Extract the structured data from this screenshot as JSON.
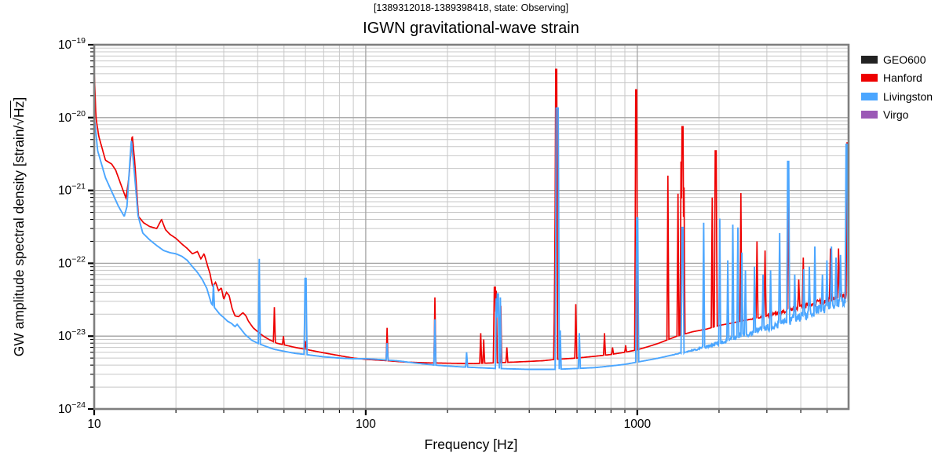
{
  "header": {
    "suptitle": "[1389312018-1389398418, state: Observing]",
    "title": "IGWN gravitational-wave strain"
  },
  "axes": {
    "xlabel": "Frequency [Hz]",
    "ylabel_prefix": "GW amplitude spectral density [strain/",
    "ylabel_sqrt_symbol": "√",
    "ylabel_sqrt_arg": "Hz",
    "ylabel_suffix": "]",
    "x_ticks": [
      {
        "value": 10,
        "label": "10"
      },
      {
        "value": 100,
        "label": "100"
      },
      {
        "value": 1000,
        "label": "1000"
      }
    ],
    "y_ticks": [
      {
        "value": 1e-19,
        "base": "10",
        "exp": "−19"
      },
      {
        "value": 1e-20,
        "base": "10",
        "exp": "−20"
      },
      {
        "value": 1e-21,
        "base": "10",
        "exp": "−21"
      },
      {
        "value": 1e-22,
        "base": "10",
        "exp": "−22"
      },
      {
        "value": 1e-23,
        "base": "10",
        "exp": "−23"
      },
      {
        "value": 1e-24,
        "base": "10",
        "exp": "−24"
      }
    ]
  },
  "chart_data": {
    "type": "line",
    "x_scale": "log",
    "y_scale": "log",
    "xlim": [
      10,
      6000
    ],
    "ylim": [
      1e-24,
      1e-19
    ],
    "grid": "both",
    "legend_position": "right-outside",
    "title": "IGWN gravitational-wave strain",
    "xlabel": "Frequency [Hz]",
    "ylabel": "GW amplitude spectral density [strain/√Hz]",
    "series": [
      {
        "name": "GEO600",
        "color": "#222222",
        "baseline": [],
        "spikes": [],
        "fuzz": null
      },
      {
        "name": "Hanford",
        "color": "#ee0000",
        "baseline": [
          [
            10,
            4.5e-20
          ],
          [
            10.15,
            1e-20
          ],
          [
            10.4,
            5.5e-21
          ],
          [
            11,
            2.6e-21
          ],
          [
            11.6,
            2.3e-21
          ],
          [
            12.0,
            1.9e-21
          ],
          [
            12.6,
            1.15e-21
          ],
          [
            13.1,
            7.8e-22
          ],
          [
            13.45,
            1.6e-21
          ],
          [
            13.8,
            5.9e-21
          ],
          [
            14.1,
            2.5e-21
          ],
          [
            14.55,
            4.4e-22
          ],
          [
            15.2,
            3.6e-22
          ],
          [
            16.0,
            3.2e-22
          ],
          [
            17.0,
            3e-22
          ],
          [
            17.7,
            4e-22
          ],
          [
            18.3,
            2.9e-22
          ],
          [
            19.0,
            2.5e-22
          ],
          [
            20,
            2.2e-22
          ],
          [
            21,
            1.85e-22
          ],
          [
            22,
            1.6e-22
          ],
          [
            23,
            1.35e-22
          ],
          [
            24,
            1.45e-22
          ],
          [
            24.7,
            1.15e-22
          ],
          [
            25.4,
            1.35e-22
          ],
          [
            26.1,
            9.5e-23
          ],
          [
            26.7,
            7.2e-23
          ],
          [
            27.3,
            4.8e-23
          ],
          [
            28,
            5.5e-23
          ],
          [
            28.7,
            4.2e-23
          ],
          [
            29.4,
            4.6e-23
          ],
          [
            30,
            3.2e-23
          ],
          [
            30.7,
            4e-23
          ],
          [
            31.4,
            3.6e-23
          ],
          [
            32.2,
            2.4e-23
          ],
          [
            33,
            1.9e-23
          ],
          [
            34,
            1.85e-23
          ],
          [
            35.3,
            2.1e-23
          ],
          [
            36.2,
            1.9e-23
          ],
          [
            37,
            1.6e-23
          ],
          [
            38.5,
            1.3e-23
          ],
          [
            40,
            1.15e-23
          ],
          [
            42,
            1e-23
          ],
          [
            44,
            9e-24
          ],
          [
            47,
            8e-24
          ],
          [
            50,
            7.6e-24
          ],
          [
            55,
            7e-24
          ],
          [
            60,
            6.6e-24
          ],
          [
            70,
            5.9e-24
          ],
          [
            80,
            5.4e-24
          ],
          [
            90,
            5e-24
          ],
          [
            100,
            4.8e-24
          ],
          [
            120,
            4.6e-24
          ],
          [
            140,
            4.4e-24
          ],
          [
            170,
            4.3e-24
          ],
          [
            200,
            4.25e-24
          ],
          [
            250,
            4.2e-24
          ],
          [
            300,
            4.3e-24
          ],
          [
            350,
            4.4e-24
          ],
          [
            400,
            4.5e-24
          ],
          [
            450,
            4.6e-24
          ],
          [
            500,
            4.8e-24
          ],
          [
            600,
            5e-24
          ],
          [
            700,
            5.3e-24
          ],
          [
            800,
            5.6e-24
          ],
          [
            900,
            6e-24
          ],
          [
            1000,
            6.5e-24
          ],
          [
            1100,
            7.2e-24
          ],
          [
            1200,
            8e-24
          ],
          [
            1400,
            1e-23
          ],
          [
            1600,
            1.15e-23
          ],
          [
            1800,
            1.25e-23
          ],
          [
            2000,
            1.4e-23
          ],
          [
            2300,
            1.55e-23
          ],
          [
            2600,
            1.7e-23
          ],
          [
            3000,
            1.9e-23
          ],
          [
            3500,
            2.2e-23
          ],
          [
            4000,
            2.5e-23
          ],
          [
            4500,
            2.8e-23
          ],
          [
            5000,
            3.1e-23
          ],
          [
            5500,
            3.4e-23
          ],
          [
            6000,
            3.7e-23
          ]
        ],
        "spikes": [
          [
            46,
            2.5e-23
          ],
          [
            49.8,
            1e-23
          ],
          [
            60,
            8.5e-24
          ],
          [
            120,
            1.3e-23
          ],
          [
            180,
            3.4e-23
          ],
          [
            265,
            1.1e-23
          ],
          [
            272,
            9e-24
          ],
          [
            299,
            4.7e-23,
            1
          ],
          [
            302,
            4.2e-23
          ],
          [
            315,
            2.6e-23
          ],
          [
            331,
            7e-24
          ],
          [
            497,
            7e-23
          ],
          [
            502,
            4.6e-20,
            1
          ],
          [
            594,
            2.75e-23
          ],
          [
            757,
            1.1e-23
          ],
          [
            810,
            7e-24
          ],
          [
            905,
            7.5e-24
          ],
          [
            990,
            2.4e-20,
            1
          ],
          [
            1297,
            1.6e-21
          ],
          [
            1410,
            9e-22
          ],
          [
            1447,
            2.5e-21
          ],
          [
            1465,
            7.5e-21,
            1
          ],
          [
            1485,
            1.1e-21
          ],
          [
            1890,
            8e-22
          ],
          [
            1945,
            3.5e-21,
            1
          ],
          [
            2410,
            9.2e-22
          ],
          [
            2760,
            2e-22
          ],
          [
            2950,
            1.5e-22
          ],
          [
            3600,
            2.3e-21
          ],
          [
            3940,
            6e-23
          ],
          [
            4080,
            1.2e-22
          ],
          [
            5150,
            1.6e-22
          ],
          [
            5500,
            1.6e-22
          ],
          [
            5920,
            4.6e-21
          ]
        ],
        "fuzz": {
          "start": 2400,
          "amount": 0.055
        }
      },
      {
        "name": "Livingston",
        "color": "#4ba6ff",
        "baseline": [
          [
            10,
            1.05e-20
          ],
          [
            10.3,
            3.5e-21
          ],
          [
            11,
            1.5e-21
          ],
          [
            11.7,
            9e-22
          ],
          [
            12.3,
            6e-22
          ],
          [
            12.9,
            4.4e-22
          ],
          [
            13.2,
            6e-22
          ],
          [
            13.7,
            5e-21
          ],
          [
            14.05,
            1.8e-21
          ],
          [
            14.5,
            4.5e-22
          ],
          [
            15.1,
            2.6e-22
          ],
          [
            16,
            2.1e-22
          ],
          [
            17,
            1.75e-22
          ],
          [
            18,
            1.5e-22
          ],
          [
            19,
            1.4e-22
          ],
          [
            20,
            1.35e-22
          ],
          [
            21,
            1.25e-22
          ],
          [
            22,
            1.1e-22
          ],
          [
            23,
            9e-23
          ],
          [
            24,
            7.5e-23
          ],
          [
            25,
            6e-23
          ],
          [
            26,
            4.5e-23
          ],
          [
            27,
            2.8e-23
          ],
          [
            27.9,
            2.4e-23
          ],
          [
            29,
            2e-23
          ],
          [
            30,
            1.8e-23
          ],
          [
            31,
            1.6e-23
          ],
          [
            32,
            1.5e-23
          ],
          [
            33,
            1.35e-23
          ],
          [
            33.6,
            1.45e-23
          ],
          [
            34.4,
            1.3e-23
          ],
          [
            36,
            1.05e-23
          ],
          [
            38,
            8.8e-24
          ],
          [
            40,
            8e-24
          ],
          [
            43,
            7.2e-24
          ],
          [
            46,
            6.6e-24
          ],
          [
            50,
            6.2e-24
          ],
          [
            55,
            5.8e-24
          ],
          [
            60,
            5.6e-24
          ],
          [
            70,
            5.2e-24
          ],
          [
            80,
            5e-24
          ],
          [
            90,
            4.9e-24
          ],
          [
            100,
            4.9e-24
          ],
          [
            110,
            4.8e-24
          ],
          [
            130,
            4.6e-24
          ],
          [
            150,
            4.3e-24
          ],
          [
            180,
            4e-24
          ],
          [
            220,
            3.8e-24
          ],
          [
            300,
            3.6e-24
          ],
          [
            400,
            3.5e-24
          ],
          [
            500,
            3.5e-24
          ],
          [
            600,
            3.6e-24
          ],
          [
            700,
            3.7e-24
          ],
          [
            800,
            3.9e-24
          ],
          [
            900,
            4.1e-24
          ],
          [
            1000,
            4.4e-24
          ],
          [
            1200,
            5e-24
          ],
          [
            1400,
            5.7e-24
          ],
          [
            1600,
            6.4e-24
          ],
          [
            1800,
            7.2e-24
          ],
          [
            2000,
            8e-24
          ],
          [
            2300,
            9.5e-24
          ],
          [
            2600,
            1.1e-23
          ],
          [
            3000,
            1.3e-23
          ],
          [
            3500,
            1.55e-23
          ],
          [
            4000,
            1.85e-23
          ],
          [
            4500,
            2.15e-23
          ],
          [
            5000,
            2.5e-23
          ],
          [
            5500,
            2.9e-23
          ],
          [
            6000,
            3.3e-23
          ]
        ],
        "spikes": [
          [
            27.5,
            5.2e-23
          ],
          [
            40.6,
            1.15e-22
          ],
          [
            60,
            6.2e-23,
            1
          ],
          [
            120,
            8e-24
          ],
          [
            180,
            1.7e-23
          ],
          [
            235,
            6e-24
          ],
          [
            303,
            3.3e-23
          ],
          [
            307,
            3.8e-23,
            1
          ],
          [
            313,
            3.4e-23
          ],
          [
            506,
            1.35e-20,
            2
          ],
          [
            512,
            2e-21
          ],
          [
            520,
            1.2e-23
          ],
          [
            612,
            1.1e-23
          ],
          [
            1000,
            4.2e-22,
            1
          ],
          [
            1470,
            3.1e-22,
            1
          ],
          [
            1755,
            3.6e-22
          ],
          [
            2010,
            4.1e-22
          ],
          [
            2150,
            1.1e-22
          ],
          [
            2250,
            3.4e-22
          ],
          [
            2350,
            3.1e-22
          ],
          [
            2430,
            1.4e-22
          ],
          [
            2500,
            8e-23
          ],
          [
            2700,
            9e-23
          ],
          [
            2900,
            7e-23
          ],
          [
            3100,
            8e-23
          ],
          [
            3350,
            2.6e-22
          ],
          [
            3600,
            2.5e-21,
            1
          ],
          [
            3800,
            7e-23
          ],
          [
            4100,
            8.3e-23
          ],
          [
            4300,
            9e-23
          ],
          [
            4500,
            1.7e-22
          ],
          [
            4800,
            7e-23
          ],
          [
            5000,
            1.1e-22
          ],
          [
            5200,
            1.7e-22
          ],
          [
            5400,
            1.2e-22
          ],
          [
            5600,
            1.3e-22
          ],
          [
            5900,
            4.3e-21,
            1
          ]
        ],
        "fuzz": {
          "start": 1300,
          "amount": 0.09
        }
      },
      {
        "name": "Virgo",
        "color": "#9b59b6",
        "baseline": [],
        "spikes": [],
        "fuzz": null
      }
    ]
  }
}
